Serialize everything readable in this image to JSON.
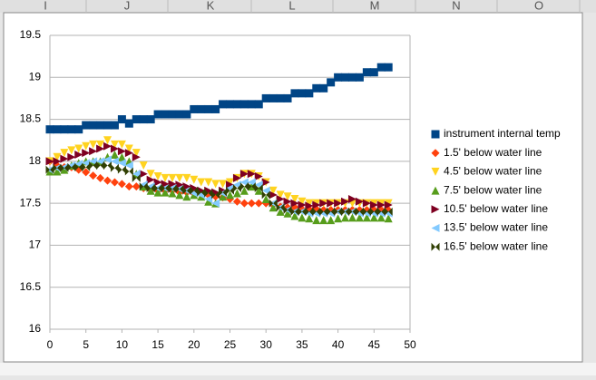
{
  "columns": [
    "I",
    "J",
    "K",
    "L",
    "M",
    "N",
    "O"
  ],
  "chart_data": {
    "type": "scatter",
    "xlim": [
      0,
      50
    ],
    "xticks": [
      0,
      5,
      10,
      15,
      20,
      25,
      30,
      35,
      40,
      45,
      50
    ],
    "ylim": [
      16,
      19.5
    ],
    "yticks": [
      16,
      16.5,
      17,
      17.5,
      18,
      18.5,
      19,
      19.5
    ],
    "grid": true,
    "legend": "right",
    "x": [
      0,
      1,
      2,
      3,
      4,
      5,
      6,
      7,
      8,
      9,
      10,
      11,
      12,
      13,
      14,
      15,
      16,
      17,
      18,
      19,
      20,
      21,
      22,
      23,
      24,
      25,
      26,
      27,
      28,
      29,
      30,
      31,
      32,
      33,
      34,
      35,
      36,
      37,
      38,
      39,
      40,
      41,
      42,
      43,
      44,
      45,
      46,
      47
    ],
    "series": [
      {
        "name": "instrument internal temp",
        "color": "#004586",
        "marker": "square",
        "values": [
          18.38,
          18.38,
          18.38,
          18.38,
          18.38,
          18.43,
          18.43,
          18.43,
          18.43,
          18.43,
          18.5,
          18.45,
          18.5,
          18.5,
          18.5,
          18.56,
          18.56,
          18.56,
          18.56,
          18.56,
          18.62,
          18.62,
          18.62,
          18.62,
          18.68,
          18.68,
          18.68,
          18.68,
          18.68,
          18.68,
          18.75,
          18.75,
          18.75,
          18.75,
          18.81,
          18.81,
          18.81,
          18.87,
          18.87,
          18.94,
          19.0,
          19.0,
          19.0,
          19.0,
          19.06,
          19.06,
          19.12,
          19.12
        ]
      },
      {
        "name": "1.5' below water line",
        "color": "#ff420e",
        "marker": "diamond",
        "values": [
          18.0,
          17.95,
          17.93,
          17.93,
          17.9,
          17.87,
          17.83,
          17.8,
          17.77,
          17.75,
          17.73,
          17.7,
          17.7,
          17.68,
          17.66,
          17.65,
          17.65,
          17.65,
          17.63,
          17.63,
          17.62,
          17.62,
          17.6,
          17.58,
          17.57,
          17.55,
          17.52,
          17.5,
          17.5,
          17.5,
          17.5,
          17.48,
          17.46,
          17.45,
          17.45,
          17.43,
          17.43,
          17.43,
          17.42,
          17.42,
          17.42,
          17.42,
          17.42,
          17.42,
          17.42,
          17.42,
          17.42,
          17.42
        ]
      },
      {
        "name": "4.5' below water line",
        "color": "#ffd320",
        "marker": "triangle-down",
        "values": [
          18.0,
          18.05,
          18.1,
          18.13,
          18.15,
          18.18,
          18.2,
          18.2,
          18.25,
          18.2,
          18.2,
          18.15,
          18.1,
          17.95,
          17.85,
          17.82,
          17.8,
          17.8,
          17.8,
          17.8,
          17.78,
          17.75,
          17.75,
          17.73,
          17.73,
          17.75,
          17.8,
          17.85,
          17.85,
          17.82,
          17.75,
          17.65,
          17.6,
          17.58,
          17.55,
          17.52,
          17.5,
          17.5,
          17.5,
          17.5,
          17.5,
          17.5,
          17.5,
          17.5,
          17.5,
          17.5,
          17.5,
          17.5
        ]
      },
      {
        "name": "7.5' below water line",
        "color": "#579d1c",
        "marker": "triangle-up",
        "values": [
          17.88,
          17.88,
          17.9,
          17.95,
          17.98,
          18.0,
          18.0,
          18.0,
          18.05,
          18.08,
          18.05,
          18.0,
          17.85,
          17.7,
          17.65,
          17.63,
          17.63,
          17.62,
          17.6,
          17.58,
          17.6,
          17.58,
          17.52,
          17.5,
          17.58,
          17.6,
          17.62,
          17.65,
          17.7,
          17.65,
          17.55,
          17.45,
          17.4,
          17.38,
          17.35,
          17.33,
          17.32,
          17.3,
          17.3,
          17.3,
          17.32,
          17.33,
          17.33,
          17.33,
          17.33,
          17.33,
          17.33,
          17.32
        ]
      },
      {
        "name": "10.5' below water line",
        "color": "#7e0021",
        "marker": "triangle-right",
        "values": [
          18.0,
          18.0,
          18.03,
          18.05,
          18.08,
          18.1,
          18.12,
          18.15,
          18.18,
          18.15,
          18.12,
          18.1,
          18.05,
          17.85,
          17.78,
          17.75,
          17.73,
          17.73,
          17.72,
          17.7,
          17.68,
          17.65,
          17.65,
          17.63,
          17.65,
          17.72,
          17.8,
          17.85,
          17.85,
          17.82,
          17.75,
          17.6,
          17.55,
          17.52,
          17.5,
          17.48,
          17.47,
          17.48,
          17.5,
          17.5,
          17.5,
          17.52,
          17.55,
          17.52,
          17.5,
          17.48,
          17.48,
          17.48
        ]
      },
      {
        "name": "13.5' below water line",
        "color": "#83caff",
        "marker": "triangle-left",
        "values": [
          17.9,
          17.92,
          17.93,
          17.95,
          17.97,
          17.98,
          18.0,
          18.0,
          18.02,
          18.0,
          17.98,
          17.95,
          17.85,
          17.72,
          17.7,
          17.68,
          17.68,
          17.68,
          17.67,
          17.65,
          17.62,
          17.6,
          17.55,
          17.5,
          17.62,
          17.68,
          17.72,
          17.75,
          17.75,
          17.72,
          17.65,
          17.5,
          17.45,
          17.42,
          17.4,
          17.4,
          17.38,
          17.38,
          17.38,
          17.38,
          17.4,
          17.4,
          17.4,
          17.38,
          17.38,
          17.38,
          17.38,
          17.38
        ]
      },
      {
        "name": "16.5' below water line",
        "color": "#314004",
        "marker": "bowtie",
        "values": [
          17.9,
          17.92,
          17.92,
          17.93,
          17.93,
          17.93,
          17.95,
          17.95,
          17.95,
          17.92,
          17.9,
          17.88,
          17.8,
          17.7,
          17.68,
          17.68,
          17.68,
          17.67,
          17.67,
          17.65,
          17.65,
          17.63,
          17.62,
          17.6,
          17.63,
          17.65,
          17.68,
          17.7,
          17.7,
          17.68,
          17.6,
          17.5,
          17.45,
          17.42,
          17.4,
          17.4,
          17.4,
          17.4,
          17.4,
          17.4,
          17.4,
          17.4,
          17.4,
          17.4,
          17.4,
          17.4,
          17.4,
          17.4
        ]
      }
    ]
  }
}
